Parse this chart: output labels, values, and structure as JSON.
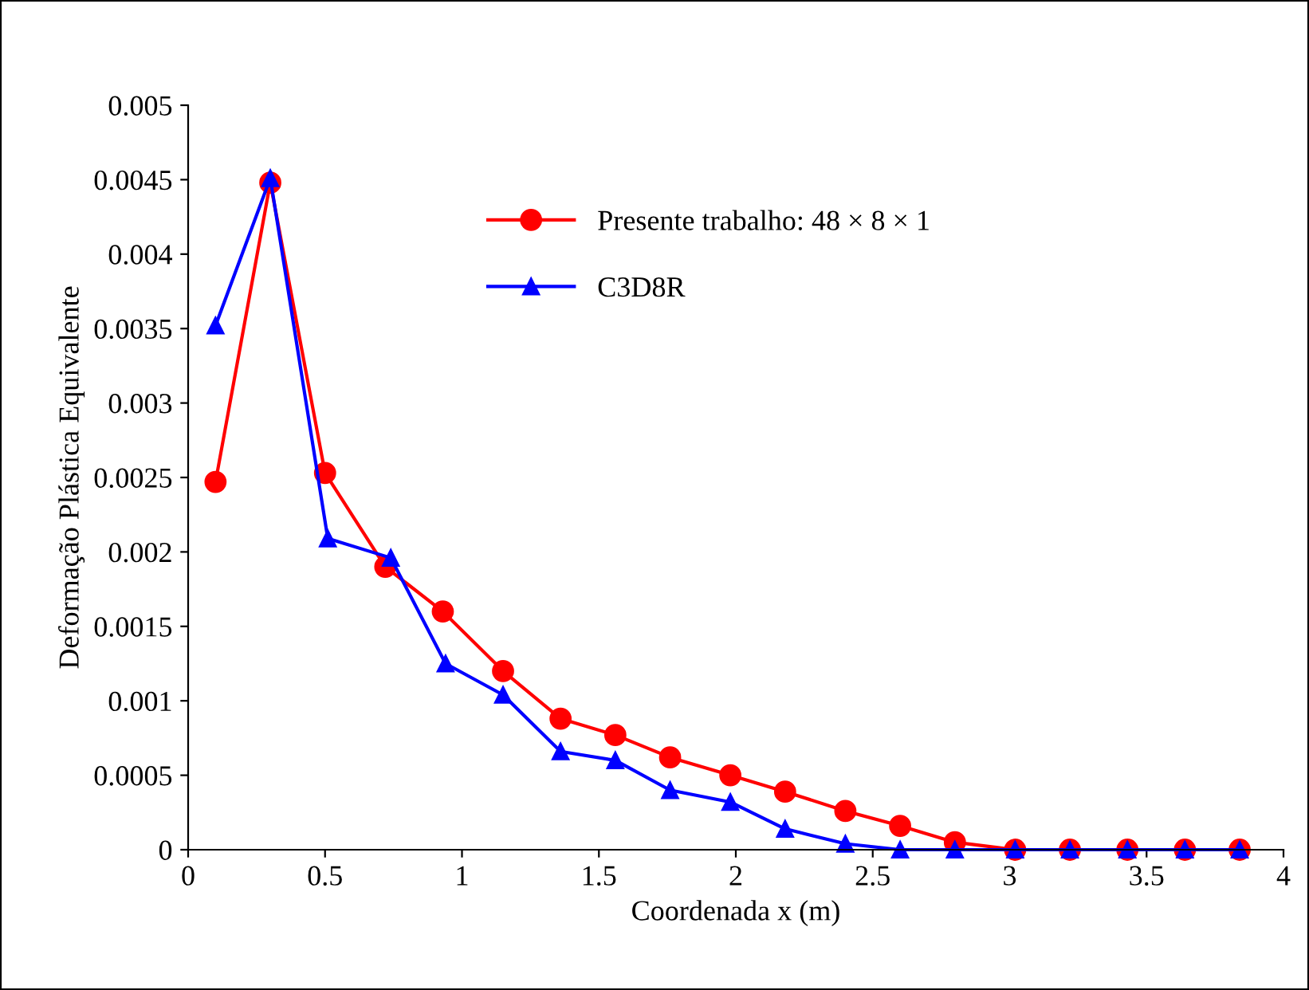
{
  "chart_data": {
    "type": "line",
    "xlabel": "Coordenada x (m)",
    "ylabel": "Deformação Plástica Equivalente",
    "xlim": [
      0,
      4
    ],
    "ylim": [
      0,
      0.005
    ],
    "xticks": [
      0,
      0.5,
      1,
      1.5,
      2,
      2.5,
      3,
      3.5,
      4
    ],
    "yticks": [
      0,
      0.0005,
      0.001,
      0.0015,
      0.002,
      0.0025,
      0.003,
      0.0035,
      0.004,
      0.0045,
      0.005
    ],
    "grid": false,
    "legend": "top",
    "line_style": "solid",
    "series": [
      {
        "name": "Presente trabalho: 48 × 8 × 1",
        "color": "#ff0000",
        "marker": "circle",
        "x": [
          0.1,
          0.3,
          0.5,
          0.72,
          0.93,
          1.15,
          1.36,
          1.56,
          1.76,
          1.98,
          2.18,
          2.4,
          2.6,
          2.8,
          3.02,
          3.22,
          3.43,
          3.64,
          3.84
        ],
        "values": [
          0.00247,
          0.00448,
          0.00253,
          0.0019,
          0.0016,
          0.0012,
          0.00088,
          0.00077,
          0.00062,
          0.0005,
          0.00039,
          0.00026,
          0.00016,
          5e-05,
          0,
          0,
          0,
          0,
          0
        ]
      },
      {
        "name": "C3D8R",
        "color": "#0000ff",
        "marker": "triangle",
        "x": [
          0.1,
          0.3,
          0.51,
          0.74,
          0.94,
          1.15,
          1.36,
          1.56,
          1.76,
          1.98,
          2.18,
          2.4,
          2.6,
          2.8,
          3.02,
          3.22,
          3.43,
          3.64,
          3.84
        ],
        "values": [
          0.00352,
          0.00451,
          0.00209,
          0.00196,
          0.00125,
          0.00104,
          0.00066,
          0.0006,
          0.0004,
          0.00032,
          0.00014,
          4e-05,
          0,
          0,
          0,
          0,
          0,
          0,
          0
        ]
      }
    ]
  }
}
